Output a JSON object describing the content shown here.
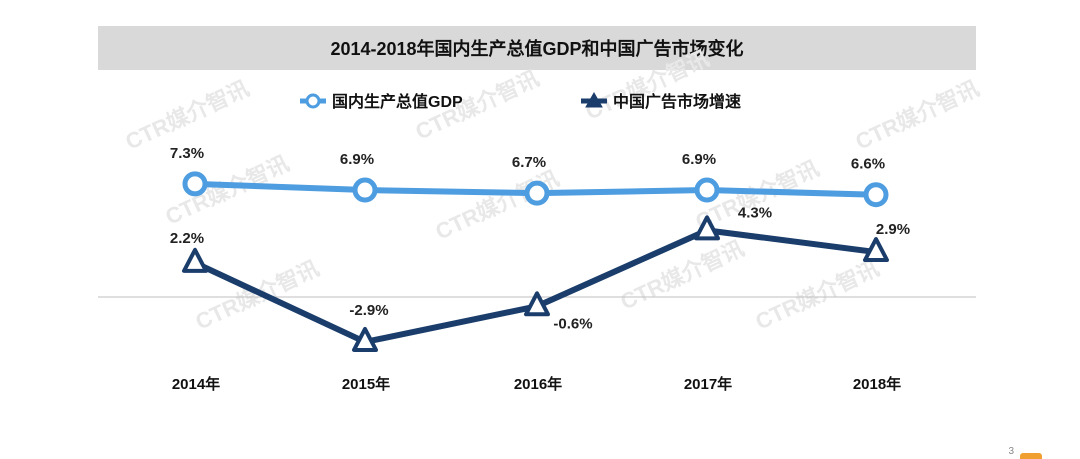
{
  "chart_data": {
    "type": "line",
    "title": "2014-2018年国内生产总值GDP和中国广告市场变化",
    "categories": [
      "2014年",
      "2015年",
      "2016年",
      "2017年",
      "2018年"
    ],
    "series": [
      {
        "name": "国内生产总值GDP",
        "values": [
          7.3,
          6.9,
          6.7,
          6.9,
          6.6
        ],
        "labels": [
          "7.3%",
          "6.9%",
          "6.7%",
          "6.9%",
          "6.6%"
        ],
        "color": "#4d9de0",
        "marker": "circle"
      },
      {
        "name": "中国广告市场增速",
        "values": [
          2.2,
          -2.9,
          -0.6,
          4.3,
          2.9
        ],
        "labels": [
          "2.2%",
          "-2.9%",
          "-0.6%",
          "4.3%",
          "2.9%"
        ],
        "color": "#1a3d6b",
        "marker": "triangle"
      }
    ],
    "unit": "%",
    "ylim": [
      -4,
      10
    ],
    "grid": false,
    "legend_position": "top-left",
    "watermark": "CTR媒介智讯"
  },
  "page_number": "3"
}
